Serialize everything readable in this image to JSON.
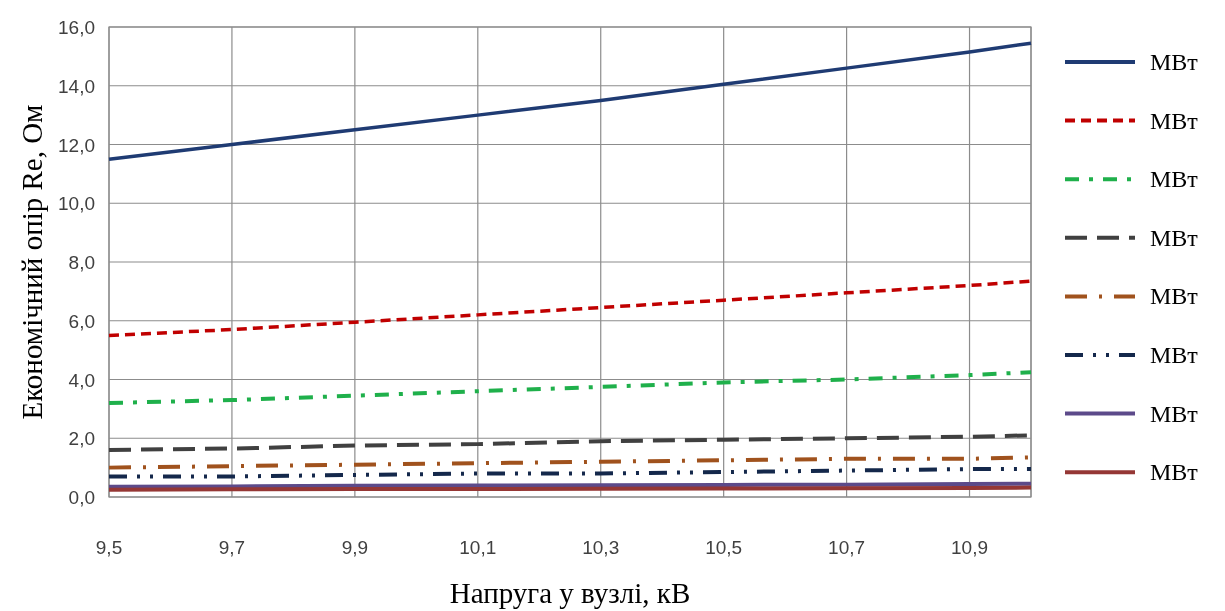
{
  "chart_data": {
    "type": "line",
    "xlabel": "Напруга у вузлі, кВ",
    "ylabel": "Економічний опір Re, Ом",
    "x": [
      9.5,
      9.7,
      9.9,
      10.1,
      10.3,
      10.5,
      10.7,
      10.9,
      11.0
    ],
    "xlim": [
      9.5,
      11.0
    ],
    "xticks": [
      {
        "value": 9.5,
        "label": "9,5"
      },
      {
        "value": 9.7,
        "label": "9,7"
      },
      {
        "value": 9.9,
        "label": "9,9"
      },
      {
        "value": 10.1,
        "label": "10,1"
      },
      {
        "value": 10.3,
        "label": "10,3"
      },
      {
        "value": 10.5,
        "label": "10,5"
      },
      {
        "value": 10.7,
        "label": "10,7"
      },
      {
        "value": 10.9,
        "label": "10,9"
      },
      {
        "value": 11.0,
        "label": null
      }
    ],
    "ylim": [
      0,
      16
    ],
    "yticks": [
      {
        "value": 0,
        "label": "0,0"
      },
      {
        "value": 2,
        "label": "2,0"
      },
      {
        "value": 4,
        "label": "4,0"
      },
      {
        "value": 6,
        "label": "6,0"
      },
      {
        "value": 8,
        "label": "8,0"
      },
      {
        "value": 10,
        "label": "10,0"
      },
      {
        "value": 12,
        "label": "12,0"
      },
      {
        "value": 14,
        "label": "14,0"
      },
      {
        "value": 16,
        "label": "16,0"
      }
    ],
    "grid": true,
    "legend": "right",
    "marker": "none",
    "series": [
      {
        "name": "МВт",
        "color": "#1f3b73",
        "line_style": "solid",
        "values": [
          11.5,
          12.0,
          12.5,
          13.0,
          13.5,
          14.05,
          14.6,
          15.15,
          15.45
        ]
      },
      {
        "name": "МВт",
        "color": "#c00000",
        "line_style": "dashed",
        "values": [
          5.5,
          5.7,
          5.95,
          6.2,
          6.45,
          6.7,
          6.95,
          7.2,
          7.35
        ]
      },
      {
        "name": "МВт",
        "color": "#1fb04b",
        "line_style": "dashed",
        "values": [
          3.2,
          3.3,
          3.45,
          3.6,
          3.75,
          3.9,
          4.0,
          4.15,
          4.25
        ]
      },
      {
        "name": "МВт",
        "color": "#404040",
        "line_style": "dashed",
        "values": [
          1.6,
          1.65,
          1.75,
          1.8,
          1.9,
          1.95,
          2.0,
          2.05,
          2.1
        ]
      },
      {
        "name": "МВт",
        "color": "#a0521d",
        "line_style": "dashed",
        "values": [
          1.0,
          1.05,
          1.1,
          1.15,
          1.2,
          1.25,
          1.3,
          1.3,
          1.35
        ]
      },
      {
        "name": "МВт",
        "color": "#14284b",
        "line_style": "dashed",
        "values": [
          0.7,
          0.7,
          0.75,
          0.8,
          0.8,
          0.85,
          0.9,
          0.95,
          0.95
        ]
      },
      {
        "name": "МВт",
        "color": "#5c4a8a",
        "line_style": "solid",
        "values": [
          0.35,
          0.36,
          0.38,
          0.39,
          0.4,
          0.41,
          0.42,
          0.44,
          0.45
        ]
      },
      {
        "name": "МВт",
        "color": "#953735",
        "line_style": "solid",
        "values": [
          0.25,
          0.26,
          0.27,
          0.27,
          0.28,
          0.29,
          0.3,
          0.31,
          0.32
        ]
      }
    ]
  }
}
